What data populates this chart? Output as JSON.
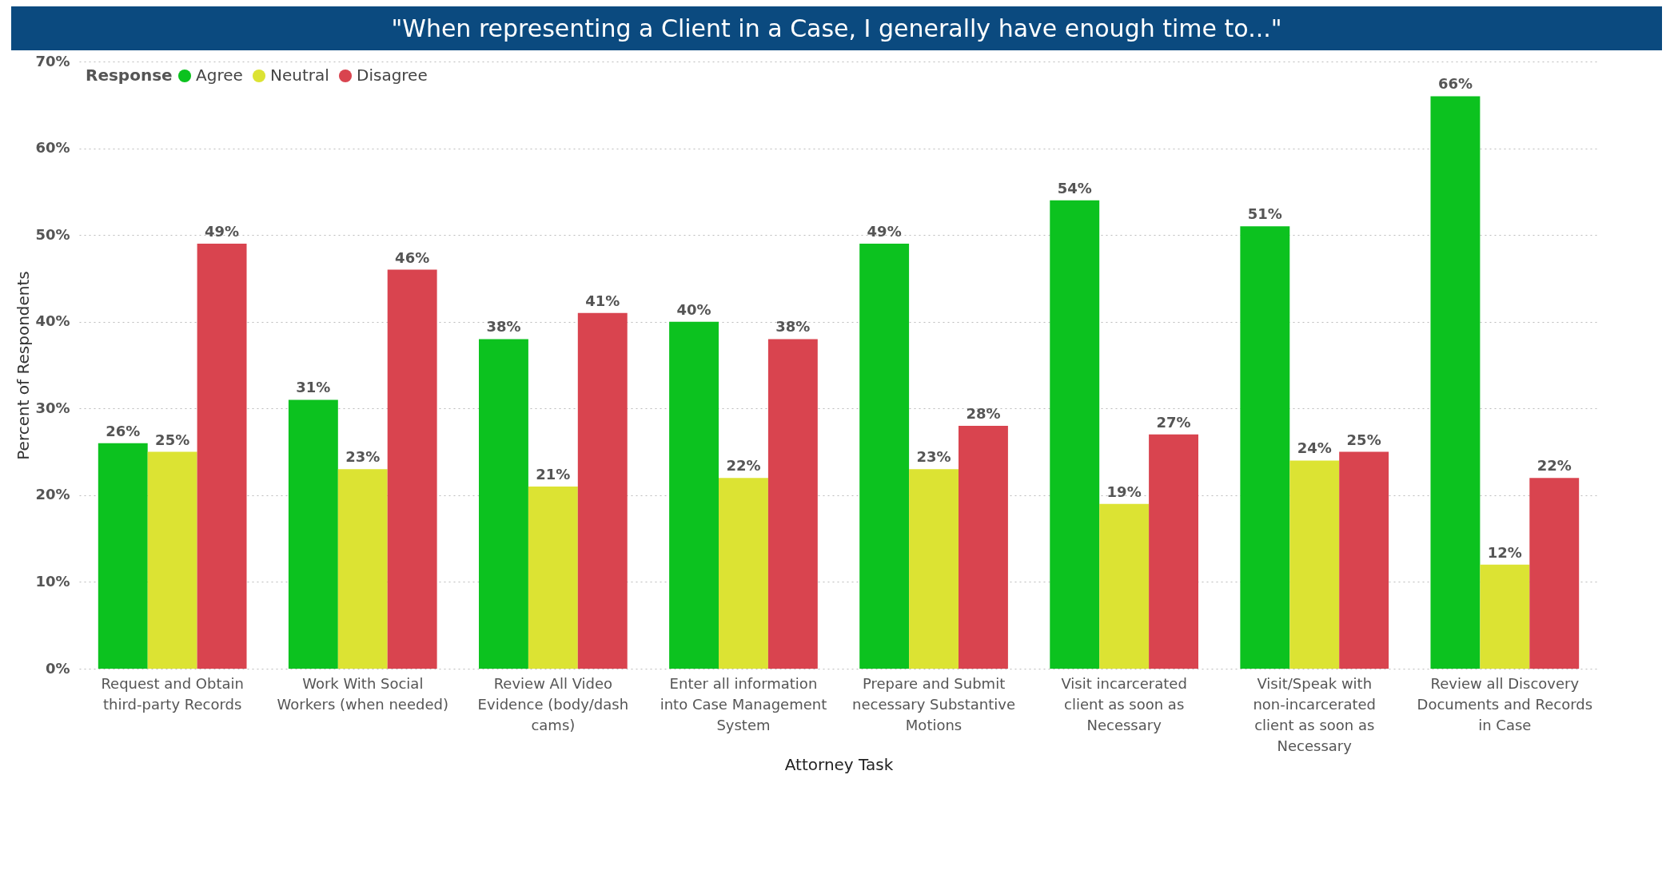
{
  "chart_data": {
    "type": "bar",
    "title": "\"When representing a Client in a Case, I generally have enough time to...\"",
    "xlabel": "Attorney Task",
    "ylabel": "Percent of Respondents",
    "legend_title": "Response",
    "categories": [
      "Request and Obtain third-party Records",
      "Work With Social Workers (when needed)",
      "Review All Video Evidence (body/dash cams)",
      "Enter all information into Case Management System",
      "Prepare and Submit necessary Substantive Motions",
      "Visit incarcerated client as soon as Necessary",
      "Visit/Speak with non-incarcerated client as soon as Necessary",
      "Review all Discovery Documents and Records in Case"
    ],
    "series": [
      {
        "name": "Agree",
        "color": "#0cc21f",
        "values": [
          26,
          31,
          38,
          40,
          49,
          54,
          51,
          66
        ],
        "value_labels": [
          "26%",
          "31%",
          "38%",
          "40%",
          "49%",
          "54%",
          "51%",
          "66%"
        ]
      },
      {
        "name": "Neutral",
        "color": "#dce333",
        "values": [
          25,
          23,
          21,
          22,
          23,
          19,
          24,
          12
        ],
        "value_labels": [
          "25%",
          "23%",
          "21%",
          "22%",
          "23%",
          "19%",
          "24%",
          "12%"
        ]
      },
      {
        "name": "Disagree",
        "color": "#d9444f",
        "values": [
          49,
          46,
          41,
          38,
          28,
          27,
          25,
          22
        ],
        "value_labels": [
          "49%",
          "46%",
          "41%",
          "38%",
          "28%",
          "27%",
          "25%",
          "22%"
        ]
      }
    ],
    "ylim": [
      0,
      70
    ],
    "yticks": [
      {
        "value": 0,
        "label": "0%"
      },
      {
        "value": 10,
        "label": "10%"
      },
      {
        "value": 20,
        "label": "20%"
      },
      {
        "value": 30,
        "label": "30%"
      },
      {
        "value": 40,
        "label": "40%"
      },
      {
        "value": 50,
        "label": "50%"
      },
      {
        "value": 60,
        "label": "60%"
      },
      {
        "value": 70,
        "label": "70%"
      }
    ],
    "grid": "y",
    "legend": "top left"
  }
}
